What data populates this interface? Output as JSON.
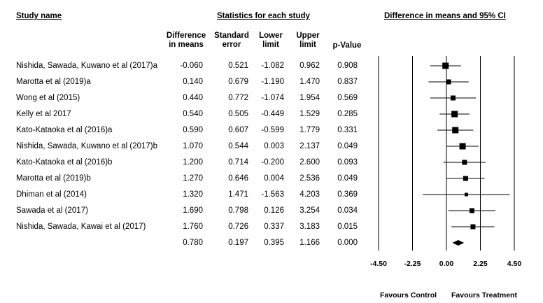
{
  "headers": {
    "study_name": "Study name",
    "stats_title": "Statistics for each study",
    "plot_title": "Difference in means and 95% CI"
  },
  "columns": {
    "diff": [
      "Difference",
      "in means"
    ],
    "se": [
      "Standard",
      "error"
    ],
    "lower": [
      "Lower",
      "limit"
    ],
    "upper": [
      "Upper",
      "limit"
    ],
    "p": [
      "p-Value"
    ]
  },
  "rows": [
    {
      "study": "Nishida, Sawada, Kuwano et al (2017)a",
      "diff": "-0.060",
      "se": "0.521",
      "lower": "-1.082",
      "upper": "0.962",
      "p": "0.908"
    },
    {
      "study": "Marotta et al (2019)a",
      "diff": "0.140",
      "se": "0.679",
      "lower": "-1.190",
      "upper": "1.470",
      "p": "0.837"
    },
    {
      "study": "Wong et al (2015)",
      "diff": "0.440",
      "se": "0.772",
      "lower": "-1.074",
      "upper": "1.954",
      "p": "0.569"
    },
    {
      "study": "Kelly et al 2017",
      "diff": "0.540",
      "se": "0.505",
      "lower": "-0.449",
      "upper": "1.529",
      "p": "0.285"
    },
    {
      "study": "Kato-Kataoka et al (2016)a",
      "diff": "0.590",
      "se": "0.607",
      "lower": "-0.599",
      "upper": "1.779",
      "p": "0.331"
    },
    {
      "study": "Nishida, Sawada, Kuwano et al (2017)b",
      "diff": "1.070",
      "se": "0.544",
      "lower": "0.003",
      "upper": "2.137",
      "p": "0.049"
    },
    {
      "study": "Kato-Kataoka et al (2016)b",
      "diff": "1.200",
      "se": "0.714",
      "lower": "-0.200",
      "upper": "2.600",
      "p": "0.093"
    },
    {
      "study": "Marotta et al (2019)b",
      "diff": "1.270",
      "se": "0.646",
      "lower": "0.004",
      "upper": "2.536",
      "p": "0.049"
    },
    {
      "study": "Dhiman et al (2014)",
      "diff": "1.320",
      "se": "1.471",
      "lower": "-1.563",
      "upper": "4.203",
      "p": "0.369"
    },
    {
      "study": "Sawada et al (2017)",
      "diff": "1.690",
      "se": "0.798",
      "lower": "0.126",
      "upper": "3.254",
      "p": "0.034"
    },
    {
      "study": "Nishida, Sawada, Kawai et al (2017)",
      "diff": "1.760",
      "se": "0.726",
      "lower": "0.337",
      "upper": "3.183",
      "p": "0.015"
    },
    {
      "study": "",
      "diff": "0.780",
      "se": "0.197",
      "lower": "0.395",
      "upper": "1.166",
      "p": "0.000"
    }
  ],
  "footer": {
    "left": "Favours Control",
    "right": "Favours Treatment"
  },
  "chart_data": {
    "type": "scatter",
    "subtype": "forest",
    "title": "Difference in means and 95% CI",
    "xlim": [
      -4.5,
      4.5
    ],
    "x_ticks": [
      "-4.50",
      "-2.25",
      "0.00",
      "2.25",
      "4.50"
    ],
    "x_tick_values": [
      -4.5,
      -2.25,
      0,
      2.25,
      4.5
    ],
    "grid": false,
    "studies": [
      {
        "name": "Nishida, Sawada, Kuwano et al (2017)a",
        "estimate": -0.06,
        "lower": -1.082,
        "upper": 0.962,
        "weight_rank": 3
      },
      {
        "name": "Marotta et al (2019)a",
        "estimate": 0.14,
        "lower": -1.19,
        "upper": 1.47,
        "weight_rank": 2
      },
      {
        "name": "Wong et al (2015)",
        "estimate": 0.44,
        "lower": -1.074,
        "upper": 1.954,
        "weight_rank": 2
      },
      {
        "name": "Kelly et al 2017",
        "estimate": 0.54,
        "lower": -0.449,
        "upper": 1.529,
        "weight_rank": 3
      },
      {
        "name": "Kato-Kataoka et al (2016)a",
        "estimate": 0.59,
        "lower": -0.599,
        "upper": 1.779,
        "weight_rank": 3
      },
      {
        "name": "Nishida, Sawada, Kuwano et al (2017)b",
        "estimate": 1.07,
        "lower": 0.003,
        "upper": 2.137,
        "weight_rank": 3
      },
      {
        "name": "Kato-Kataoka et al (2016)b",
        "estimate": 1.2,
        "lower": -0.2,
        "upper": 2.6,
        "weight_rank": 2
      },
      {
        "name": "Marotta et al (2019)b",
        "estimate": 1.27,
        "lower": 0.004,
        "upper": 2.536,
        "weight_rank": 2
      },
      {
        "name": "Dhiman et al (2014)",
        "estimate": 1.32,
        "lower": -1.563,
        "upper": 4.203,
        "weight_rank": 1
      },
      {
        "name": "Sawada et al (2017)",
        "estimate": 1.69,
        "lower": 0.126,
        "upper": 3.254,
        "weight_rank": 2
      },
      {
        "name": "Nishida, Sawada, Kawai et al (2017)",
        "estimate": 1.76,
        "lower": 0.337,
        "upper": 3.183,
        "weight_rank": 2
      }
    ],
    "summary": {
      "estimate": 0.78,
      "lower": 0.395,
      "upper": 1.166
    }
  }
}
